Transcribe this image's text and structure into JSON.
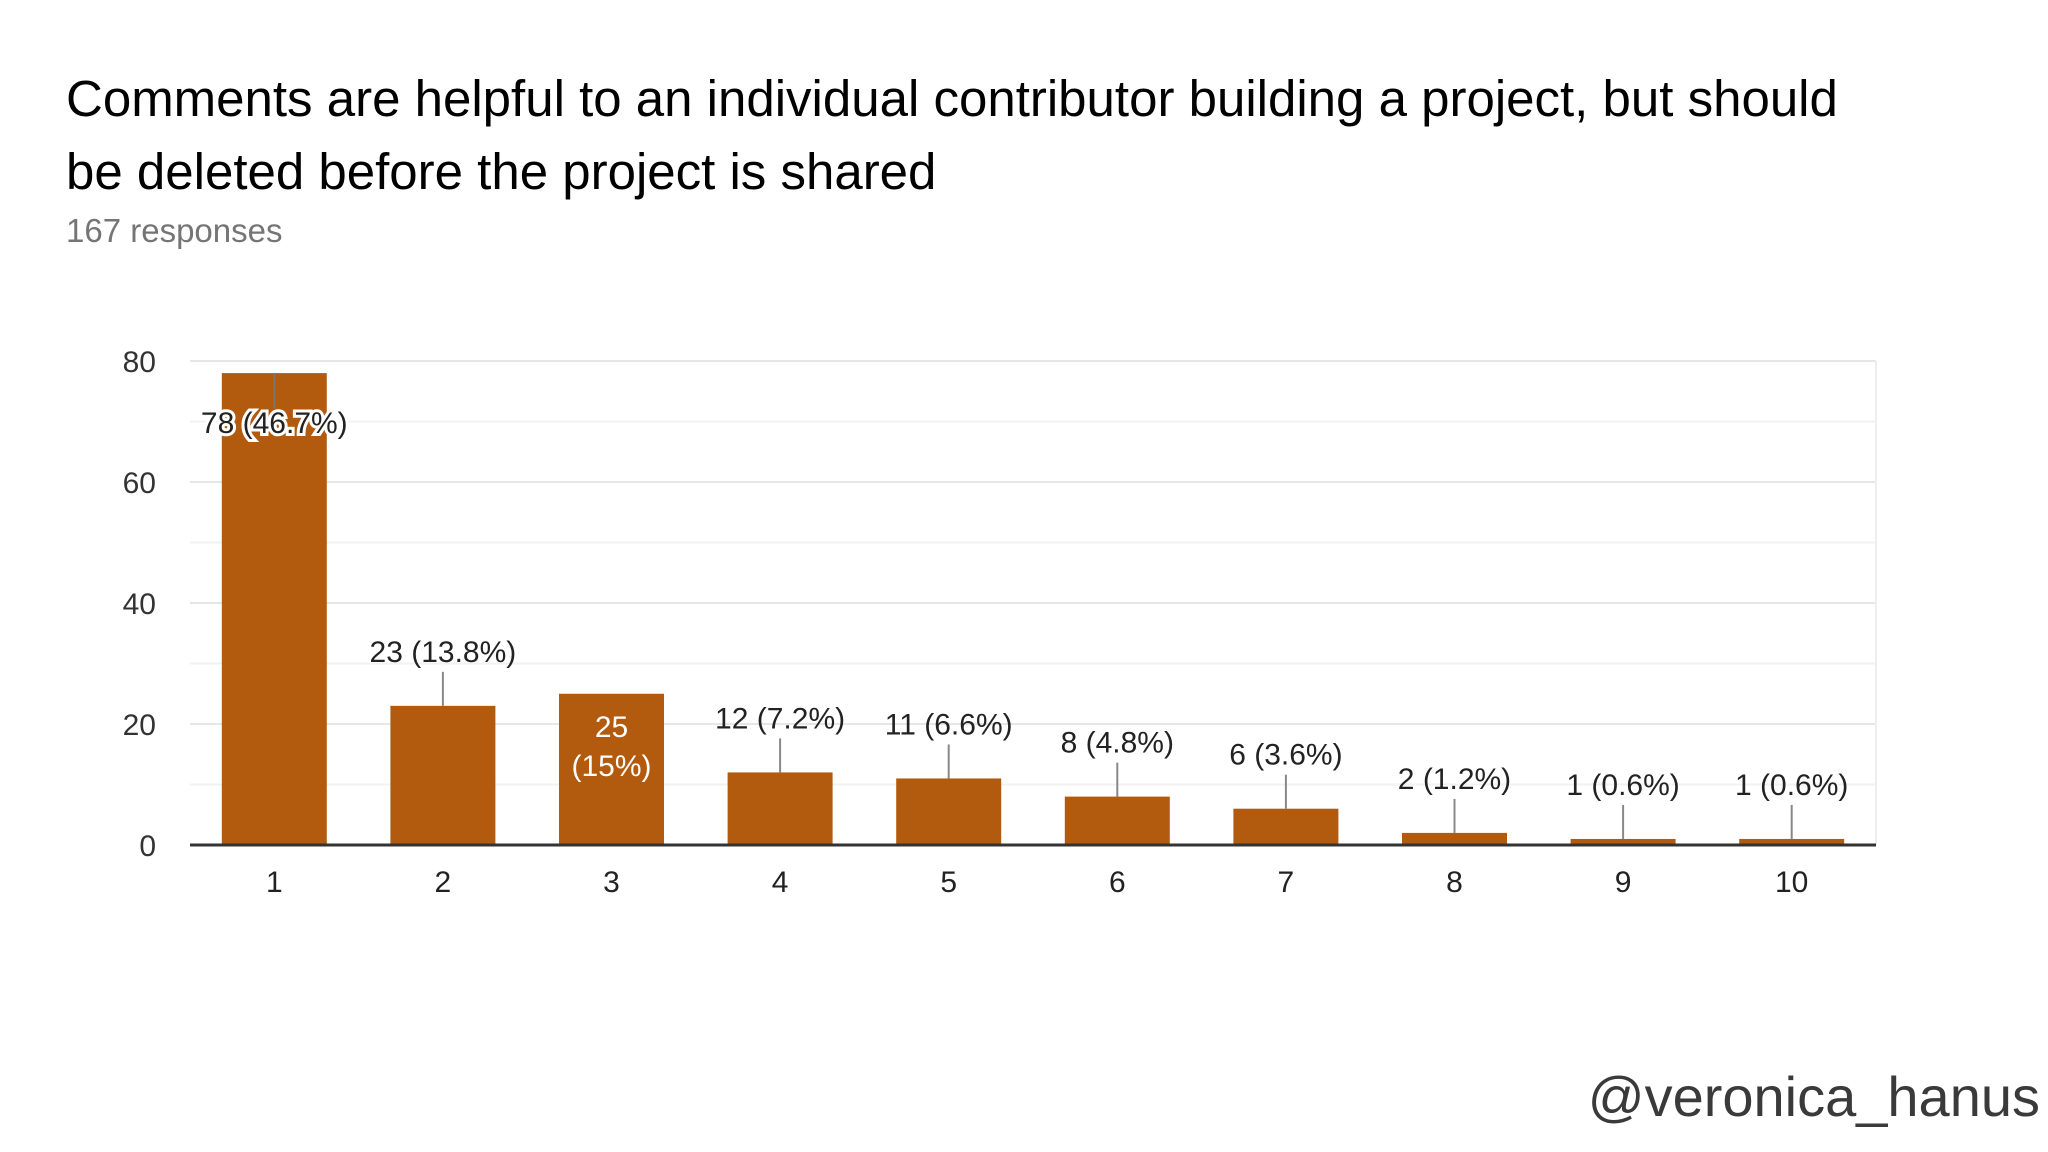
{
  "header": {
    "title": "Comments are helpful to an individual contributor building a project, but should be deleted before the project is shared",
    "responses": "167 responses"
  },
  "watermark": "@veronica_hanus",
  "chart_data": {
    "type": "bar",
    "categories": [
      "1",
      "2",
      "3",
      "4",
      "5",
      "6",
      "7",
      "8",
      "9",
      "10"
    ],
    "values": [
      78,
      23,
      25,
      12,
      11,
      8,
      6,
      2,
      1,
      1
    ],
    "labels": [
      "78 (46.7%)",
      "23 (13.8%)",
      "25 (15%)",
      "12 (7.2%)",
      "11 (6.6%)",
      "8 (4.8%)",
      "6 (3.6%)",
      "2 (1.2%)",
      "1 (0.6%)",
      "1 (0.6%)"
    ],
    "title": "Comments are helpful to an individual contributor building a project, but should be deleted before the project is shared",
    "xlabel": "",
    "ylabel": "",
    "ylim": [
      0,
      80
    ],
    "yticks": [
      0,
      20,
      40,
      60,
      80
    ],
    "bar_color": "#b25b0e",
    "grid": true,
    "legend": "none"
  }
}
